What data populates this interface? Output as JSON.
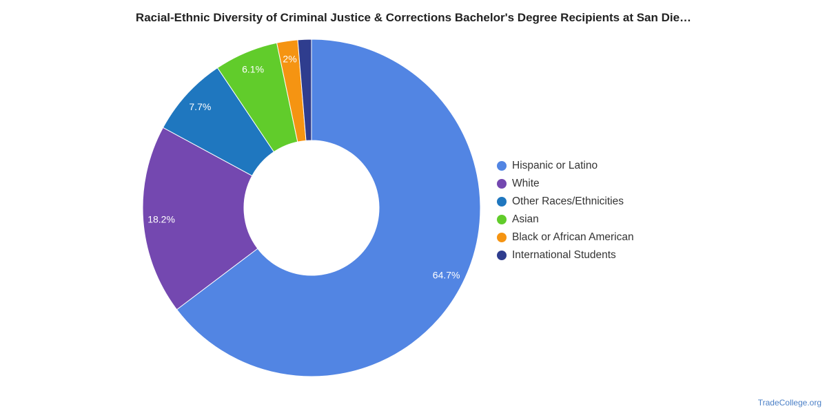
{
  "title": "Racial-Ethnic Diversity of Criminal Justice & Corrections Bachelor's Degree Recipients at San Die…",
  "source_link": "TradeCollege.org",
  "chart_data": {
    "type": "pie",
    "donut": true,
    "title": "Racial-Ethnic Diversity of Criminal Justice & Corrections Bachelor's Degree Recipients at San Die…",
    "legend_placement": "right",
    "slices": [
      {
        "name": "Hispanic or Latino",
        "value": 64.7,
        "label": "64.7%",
        "color": "#5285e3"
      },
      {
        "name": "White",
        "value": 18.2,
        "label": "18.2%",
        "color": "#7448b0"
      },
      {
        "name": "Other Races/Ethnicities",
        "value": 7.7,
        "label": "7.7%",
        "color": "#1f77bf"
      },
      {
        "name": "Asian",
        "value": 6.1,
        "label": "6.1%",
        "color": "#61cc2b"
      },
      {
        "name": "Black or African American",
        "value": 2.0,
        "label": "2%",
        "color": "#f59412"
      },
      {
        "name": "International Students",
        "value": 1.3,
        "label": "",
        "color": "#2f3d8e"
      }
    ]
  }
}
